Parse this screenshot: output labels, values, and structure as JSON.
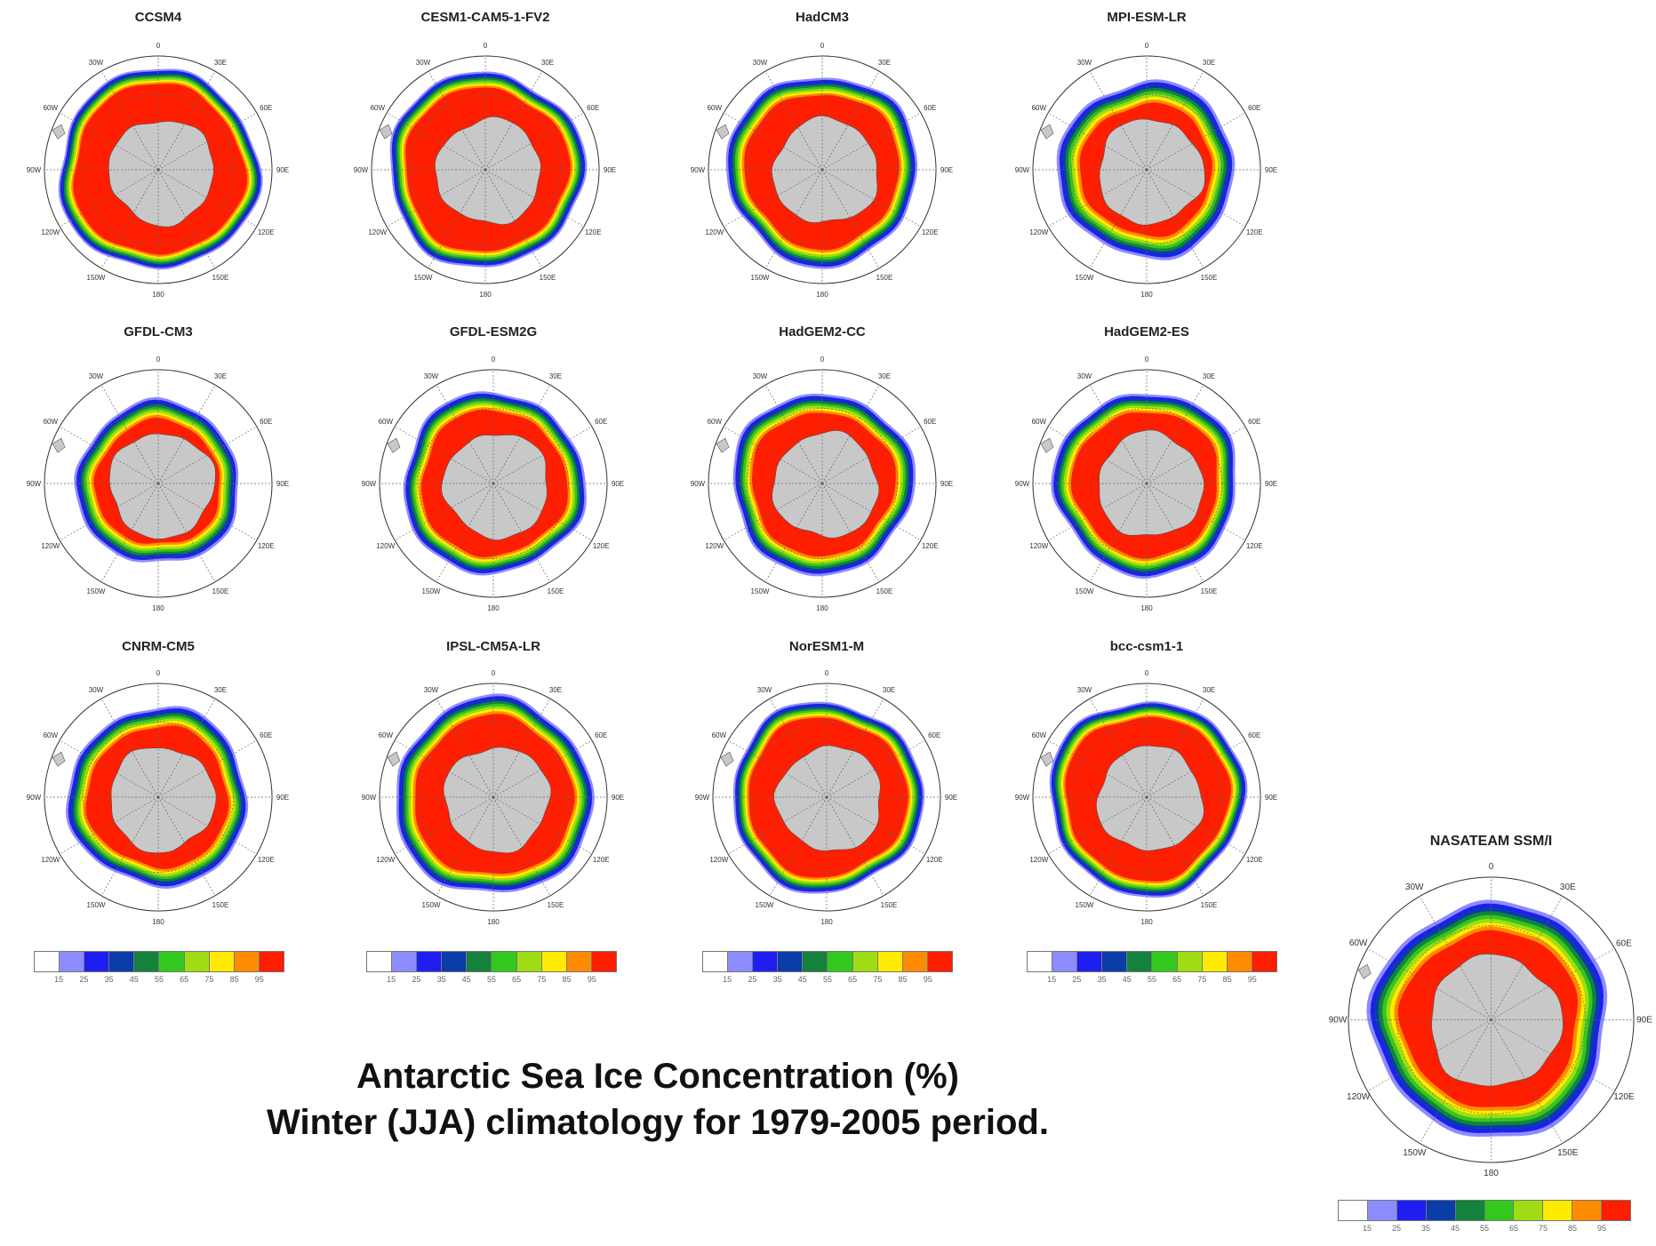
{
  "figure": {
    "title_line1": "Antarctic Sea Ice Concentration (%)",
    "title_line2": "Winter (JJA) climatology for 1979-2005 period."
  },
  "colors": {
    "land": "#c8c8c8",
    "scale": [
      "#ffffff",
      "#8c8cff",
      "#1e1ef0",
      "#0a3caa",
      "#14823c",
      "#32c81e",
      "#a0dc14",
      "#ffeb00",
      "#ff8c00",
      "#ff1e00"
    ]
  },
  "axis_labels": {
    "lon_0": "0",
    "lon_30e": "30E",
    "lon_60e": "60E",
    "lon_90e": "90E",
    "lon_120e": "120E",
    "lon_150e": "150E",
    "lon_180": "180",
    "lon_150w": "150W",
    "lon_120w": "120W",
    "lon_90w": "90W",
    "lon_60w": "60W",
    "lon_30w": "30W"
  },
  "colorbar_ticks": [
    "15",
    "25",
    "35",
    "45",
    "55",
    "65",
    "75",
    "85",
    "95"
  ],
  "panels": [
    {
      "title": "CCSM4",
      "ice_extent": 0.88,
      "core_extent": 0.75
    },
    {
      "title": "CESM1-CAM5-1-FV2",
      "ice_extent": 0.86,
      "core_extent": 0.72
    },
    {
      "title": "HadCM3",
      "ice_extent": 0.84,
      "core_extent": 0.68
    },
    {
      "title": "MPI-ESM-LR",
      "ice_extent": 0.78,
      "core_extent": 0.58
    },
    {
      "title": "GFDL-CM3",
      "ice_extent": 0.72,
      "core_extent": 0.55
    },
    {
      "title": "GFDL-ESM2G",
      "ice_extent": 0.8,
      "core_extent": 0.64
    },
    {
      "title": "HadGEM2-CC",
      "ice_extent": 0.8,
      "core_extent": 0.63
    },
    {
      "title": "HadGEM2-ES",
      "ice_extent": 0.81,
      "core_extent": 0.64
    },
    {
      "title": "CNRM-CM5",
      "ice_extent": 0.79,
      "core_extent": 0.62
    },
    {
      "title": "IPSL-CM5A-LR",
      "ice_extent": 0.87,
      "core_extent": 0.7
    },
    {
      "title": "NorESM1-M",
      "ice_extent": 0.84,
      "core_extent": 0.7
    },
    {
      "title": "bcc-csm1-1",
      "ice_extent": 0.86,
      "core_extent": 0.72
    },
    {
      "title": "NASATEAM SSM/I",
      "ice_extent": 0.83,
      "core_extent": 0.62
    }
  ]
}
